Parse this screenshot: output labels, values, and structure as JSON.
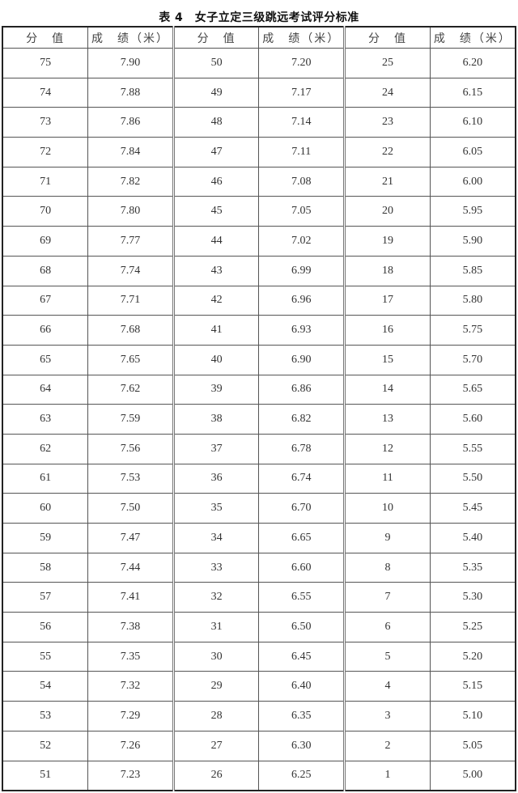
{
  "title": "表 4　女子立定三级跳远考试评分标准",
  "headers": [
    "分　值",
    "成　绩（米）",
    "分　值",
    "成　绩（米）",
    "分　值",
    "成　绩（米）"
  ],
  "rows": [
    [
      "75",
      "7.90",
      "50",
      "7.20",
      "25",
      "6.20"
    ],
    [
      "74",
      "7.88",
      "49",
      "7.17",
      "24",
      "6.15"
    ],
    [
      "73",
      "7.86",
      "48",
      "7.14",
      "23",
      "6.10"
    ],
    [
      "72",
      "7.84",
      "47",
      "7.11",
      "22",
      "6.05"
    ],
    [
      "71",
      "7.82",
      "46",
      "7.08",
      "21",
      "6.00"
    ],
    [
      "70",
      "7.80",
      "45",
      "7.05",
      "20",
      "5.95"
    ],
    [
      "69",
      "7.77",
      "44",
      "7.02",
      "19",
      "5.90"
    ],
    [
      "68",
      "7.74",
      "43",
      "6.99",
      "18",
      "5.85"
    ],
    [
      "67",
      "7.71",
      "42",
      "6.96",
      "17",
      "5.80"
    ],
    [
      "66",
      "7.68",
      "41",
      "6.93",
      "16",
      "5.75"
    ],
    [
      "65",
      "7.65",
      "40",
      "6.90",
      "15",
      "5.70"
    ],
    [
      "64",
      "7.62",
      "39",
      "6.86",
      "14",
      "5.65"
    ],
    [
      "63",
      "7.59",
      "38",
      "6.82",
      "13",
      "5.60"
    ],
    [
      "62",
      "7.56",
      "37",
      "6.78",
      "12",
      "5.55"
    ],
    [
      "61",
      "7.53",
      "36",
      "6.74",
      "11",
      "5.50"
    ],
    [
      "60",
      "7.50",
      "35",
      "6.70",
      "10",
      "5.45"
    ],
    [
      "59",
      "7.47",
      "34",
      "6.65",
      "9",
      "5.40"
    ],
    [
      "58",
      "7.44",
      "33",
      "6.60",
      "8",
      "5.35"
    ],
    [
      "57",
      "7.41",
      "32",
      "6.55",
      "7",
      "5.30"
    ],
    [
      "56",
      "7.38",
      "31",
      "6.50",
      "6",
      "5.25"
    ],
    [
      "55",
      "7.35",
      "30",
      "6.45",
      "5",
      "5.20"
    ],
    [
      "54",
      "7.32",
      "29",
      "6.40",
      "4",
      "5.15"
    ],
    [
      "53",
      "7.29",
      "28",
      "6.35",
      "3",
      "5.10"
    ],
    [
      "52",
      "7.26",
      "27",
      "6.30",
      "2",
      "5.05"
    ],
    [
      "51",
      "7.23",
      "26",
      "6.25",
      "1",
      "5.00"
    ]
  ]
}
